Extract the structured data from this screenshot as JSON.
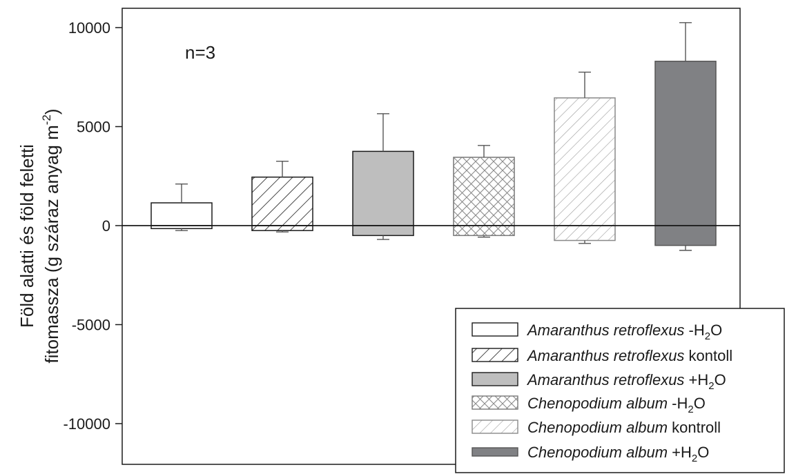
{
  "chart_data": {
    "type": "bar",
    "annotation": "n=3",
    "ylabel_line1": "Föld alatti és föld feletti",
    "ylabel_line2": "fitomassza (g száraz anyag m",
    "ylabel_sup": "-2",
    "ylabel_close": ")",
    "ylim": [
      -12000,
      11000
    ],
    "yticks": [
      10000,
      5000,
      0,
      -5000,
      -10000
    ],
    "ytick_labels": [
      "10000",
      "5000",
      "0",
      "-5000",
      "-10000"
    ],
    "grid": false,
    "legend_position": "bottom-right",
    "series": [
      {
        "species": "Amaranthus retroflexus",
        "treatment": " -H",
        "treatment_sub": "2",
        "treatment_end": "O",
        "fill": "white",
        "color": "#ffffff",
        "stroke": "#1a1a1a",
        "above": 1150,
        "above_err": 2100,
        "below": -150,
        "below_err": -250
      },
      {
        "species": "Amaranthus retroflexus",
        "treatment": " kontoll",
        "treatment_sub": "",
        "treatment_end": "",
        "fill": "diag-dark",
        "color": "#ffffff",
        "stroke": "#1a1a1a",
        "above": 2450,
        "above_err": 3250,
        "below": -250,
        "below_err": -320
      },
      {
        "species": "Amaranthus retroflexus",
        "treatment": " +H",
        "treatment_sub": "2",
        "treatment_end": "O",
        "fill": "solid-light",
        "color": "#bebebe",
        "stroke": "#1a1a1a",
        "above": 3750,
        "above_err": 5650,
        "below": -500,
        "below_err": -700
      },
      {
        "species": "Chenopodium album",
        "treatment": " -H",
        "treatment_sub": "2",
        "treatment_end": "O",
        "fill": "crosshatch",
        "color": "#ffffff",
        "stroke": "#777777",
        "above": 3450,
        "above_err": 4050,
        "below": -500,
        "below_err": -580
      },
      {
        "species": "Chenopodium album",
        "treatment": " kontroll",
        "treatment_sub": "",
        "treatment_end": "",
        "fill": "diag-light",
        "color": "#ffffff",
        "stroke": "#888888",
        "above": 6450,
        "above_err": 7750,
        "below": -750,
        "below_err": -900
      },
      {
        "species": "Chenopodium album",
        "treatment": " +H",
        "treatment_sub": "2",
        "treatment_end": "O",
        "fill": "solid-dark",
        "color": "#808184",
        "stroke": "#555555",
        "above": 8300,
        "above_err": 10250,
        "below": -1000,
        "below_err": -1250
      }
    ]
  }
}
